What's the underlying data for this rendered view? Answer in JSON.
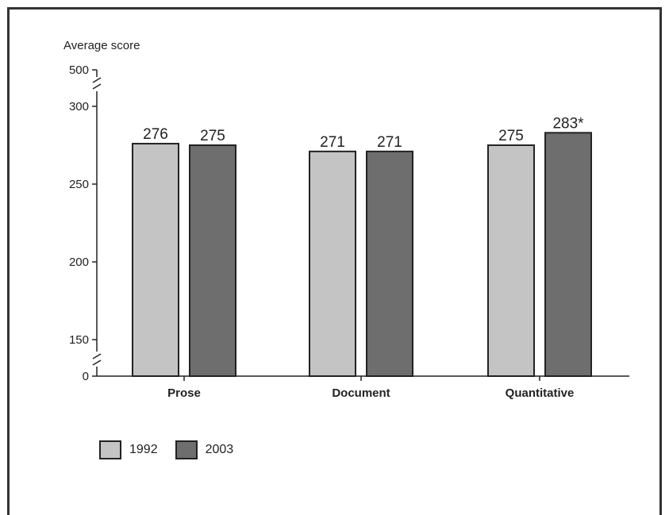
{
  "chart_data": {
    "type": "bar",
    "ylabel": "Average score",
    "categories": [
      "Prose",
      "Document",
      "Quantitative"
    ],
    "series": [
      {
        "name": "1992",
        "values": [
          276,
          271,
          275
        ],
        "labels": [
          "276",
          "271",
          "275"
        ],
        "color": "#c4c4c4"
      },
      {
        "name": "2003",
        "values": [
          275,
          271,
          283
        ],
        "labels": [
          "275",
          "271",
          "283*"
        ],
        "color": "#6e6e6e"
      }
    ],
    "ylim": [
      150,
      300
    ],
    "yticks": [
      0,
      150,
      200,
      250,
      300,
      500
    ],
    "axis_breaks": [
      "0-150",
      "300-500"
    ],
    "grid": false,
    "legend_position": "bottom-left"
  }
}
